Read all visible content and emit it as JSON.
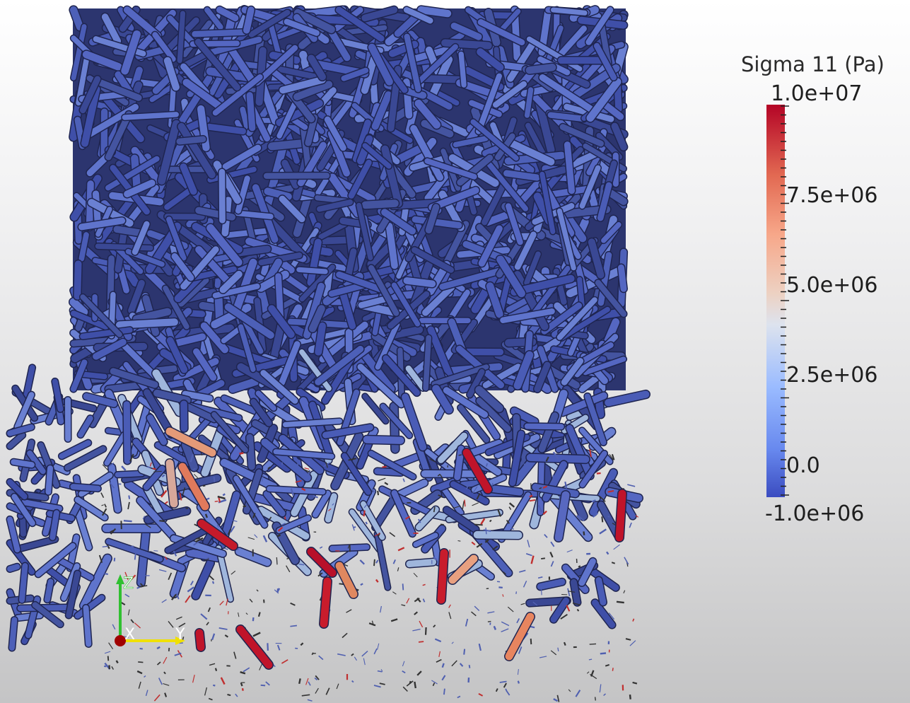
{
  "colorbar": {
    "title": "Sigma 11 (Pa)",
    "max_label": "1.0e+07",
    "min_label": "-1.0e+06",
    "range": [
      -1000000,
      10000000
    ],
    "ticks": [
      {
        "value": 7500000,
        "label": "7.5e+06"
      },
      {
        "value": 5000000,
        "label": "5.0e+06"
      },
      {
        "value": 2500000,
        "label": "2.5e+06"
      },
      {
        "value": 0,
        "label": "0.0"
      }
    ],
    "colors": [
      "#3b4cc0",
      "#6788ee",
      "#9abbff",
      "#c9d8ef",
      "#edd1c2",
      "#f7a789",
      "#e26952",
      "#b40426"
    ]
  },
  "orientation_axes": {
    "x_label": "X",
    "y_label": "Y",
    "z_label": "Z",
    "x_color": "#a00000",
    "y_color": "#f0e000",
    "z_color": "#30c030"
  },
  "scene": {
    "background_top": "#ffffff",
    "background_bottom": "#c4c4c5",
    "strut_color": "#4858a8"
  }
}
